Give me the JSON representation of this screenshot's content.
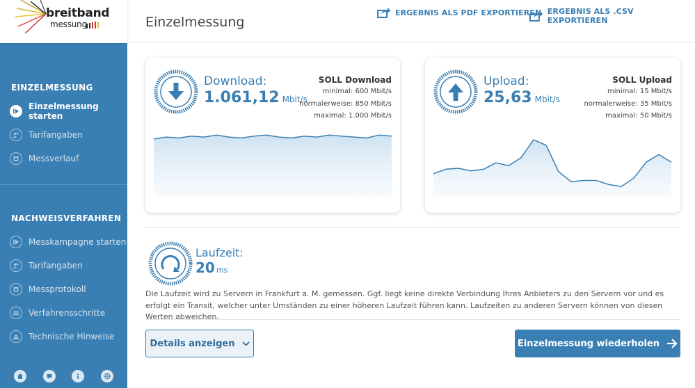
{
  "brand": {
    "name_top": "breitband",
    "name_bottom": "messung"
  },
  "sidebar": {
    "section1_title": "EINZELMESSUNG",
    "section1_items": [
      {
        "label": "Einzelmessung starten",
        "icon": "play-icon",
        "active": true
      },
      {
        "label": "Tarifangaben",
        "icon": "users-icon",
        "active": false
      },
      {
        "label": "Messverlauf",
        "icon": "calendar-icon",
        "active": false
      }
    ],
    "section2_title": "NACHWEISVERFAHREN",
    "section2_items": [
      {
        "label": "Messkampagne starten",
        "icon": "play-icon"
      },
      {
        "label": "Tarifangaben",
        "icon": "users-icon"
      },
      {
        "label": "Messprotokoll",
        "icon": "calendar-icon"
      },
      {
        "label": "Verfahrensschritte",
        "icon": "list-icon"
      },
      {
        "label": "Technische Hinweise",
        "icon": "warning-icon"
      }
    ],
    "bottom_icons": [
      "home-icon",
      "chat-icon",
      "info-icon",
      "gear-icon"
    ]
  },
  "header": {
    "title": "Einzelmessung",
    "export_pdf": "ERGEBNIS ALS PDF EXPORTIEREN",
    "export_csv": "ERGEBNIS ALS .CSV EXPORTIEREN"
  },
  "download": {
    "label": "Download:",
    "value": "1.061,12",
    "unit": "Mbit/s",
    "soll_title": "SOLL Download",
    "soll_min": "minimal: 600 Mbit/s",
    "soll_normal": "normalerweise: 850 Mbit/s",
    "soll_max": "maximal: 1.000 Mbit/s",
    "series": [
      1058,
      1060,
      1059,
      1061,
      1060,
      1062,
      1060,
      1059,
      1061,
      1062,
      1060,
      1059,
      1061,
      1060,
      1062,
      1061,
      1060,
      1059,
      1062,
      1061
    ]
  },
  "upload": {
    "label": "Upload:",
    "value": "25,63",
    "unit": "Mbit/s",
    "soll_title": "SOLL Upload",
    "soll_min": "minimal: 15 Mbit/s",
    "soll_normal": "normalerweise: 35 Mbit/s",
    "soll_max": "maximal: 50 Mbit/s",
    "series": [
      25.0,
      26.4,
      26.7,
      25.9,
      26.4,
      28.4,
      27.5,
      30.0,
      35.6,
      33.9,
      25.6,
      22.5,
      22.9,
      22.9,
      21.6,
      21.0,
      23.6,
      28.6,
      31.0,
      28.6
    ]
  },
  "latency": {
    "label": "Laufzeit:",
    "value": "20",
    "unit": "ms",
    "note": "Die Laufzeit wird zu Servern in Frankfurt a. M. gemessen. Ggf. liegt keine direkte Verbindung Ihres Anbieters zu den Servern vor und es erfolgt ein Transit, welcher unter Umständen zu einer höheren Laufzeit führen kann. Laufzeiten zu anderen Servern können von diesen Werten abweichen."
  },
  "actions": {
    "details": "Details anzeigen",
    "repeat": "Einzelmessung wiederholen"
  },
  "colors": {
    "accent": "#3a7fb3",
    "sidebar": "#3a7fb3"
  }
}
